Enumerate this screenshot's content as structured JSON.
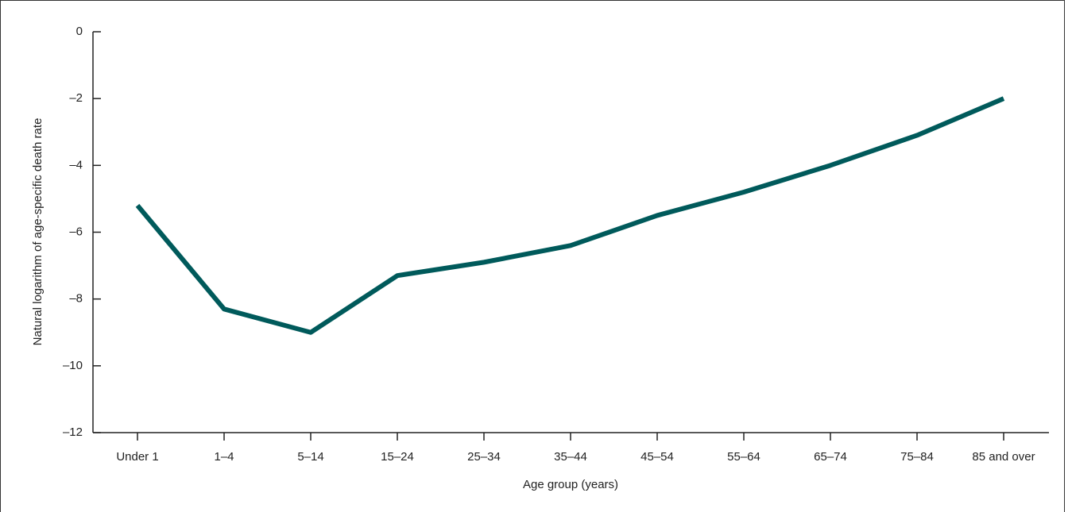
{
  "chart_data": {
    "type": "line",
    "x_label": "Age group (years)",
    "y_label": "Natural logarithm of age-specific death rate",
    "categories": [
      "Under 1",
      "1–4",
      "5–14",
      "15–24",
      "25–34",
      "35–44",
      "45–54",
      "55–64",
      "65–74",
      "75–84",
      "85 and over"
    ],
    "values": [
      -5.2,
      -8.3,
      -9.0,
      -7.3,
      -6.9,
      -6.4,
      -5.5,
      -4.8,
      -4.0,
      -3.1,
      -2.0
    ],
    "color": "#005a5b",
    "ylim": [
      -12,
      0
    ],
    "yticks": [
      {
        "value": -12,
        "label": "–12"
      },
      {
        "value": -10,
        "label": "–10"
      },
      {
        "value": -8,
        "label": "–8"
      },
      {
        "value": -6,
        "label": "–6"
      },
      {
        "value": -4,
        "label": "–4"
      },
      {
        "value": -2,
        "label": "–2"
      },
      0
    ]
  }
}
